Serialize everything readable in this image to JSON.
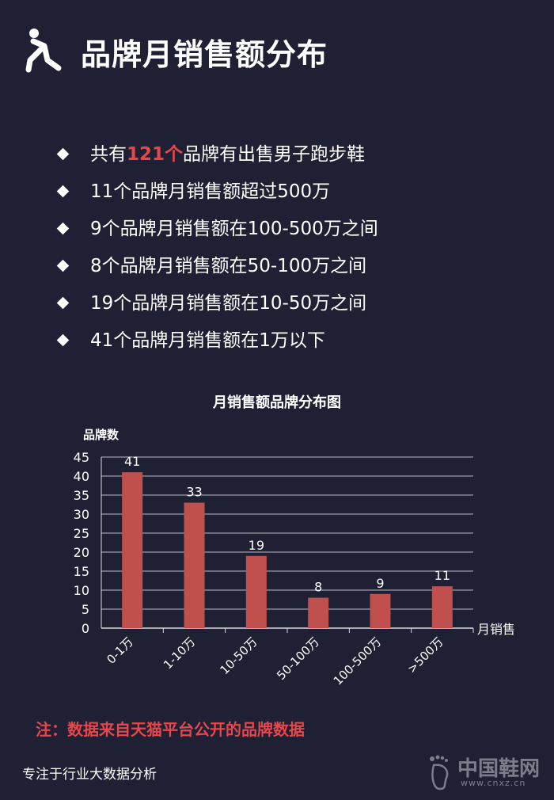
{
  "header": {
    "title": "品牌月销售额分布"
  },
  "bullets": [
    {
      "pre": "共有",
      "highlight": "121个",
      "post": "品牌有出售男子跑步鞋"
    },
    {
      "pre": "11个品牌月销售额超过500万",
      "highlight": "",
      "post": ""
    },
    {
      "pre": "9个品牌月销售额在100-500万之间",
      "highlight": "",
      "post": ""
    },
    {
      "pre": "8个品牌月销售额在50-100万之间",
      "highlight": "",
      "post": ""
    },
    {
      "pre": "19个品牌月销售额在10-50万之间",
      "highlight": "",
      "post": ""
    },
    {
      "pre": "41个品牌月销售额在1万以下",
      "highlight": "",
      "post": ""
    }
  ],
  "chart_data": {
    "type": "bar",
    "title": "月销售额品牌分布图",
    "ylabel": "品牌数",
    "xlabel": "月销售",
    "categories": [
      "0-1万",
      "1-10万",
      "10-50万",
      "50-100万",
      "100-500万",
      ">500万"
    ],
    "values": [
      41,
      33,
      19,
      8,
      9,
      11
    ],
    "ylim": [
      0,
      45
    ],
    "yticks": [
      0,
      5,
      10,
      15,
      20,
      25,
      30,
      35,
      40,
      45
    ],
    "grid": true,
    "bar_color": "#c0504d"
  },
  "note": "注：数据来自天猫平台公开的品牌数据",
  "footer": "专注于行业大数据分析",
  "watermark": {
    "name": "中国鞋网",
    "url": "www.cnxz.cn"
  },
  "colors": {
    "background": "#1f2033",
    "accent": "#e5474c",
    "bar": "#c0504d"
  }
}
